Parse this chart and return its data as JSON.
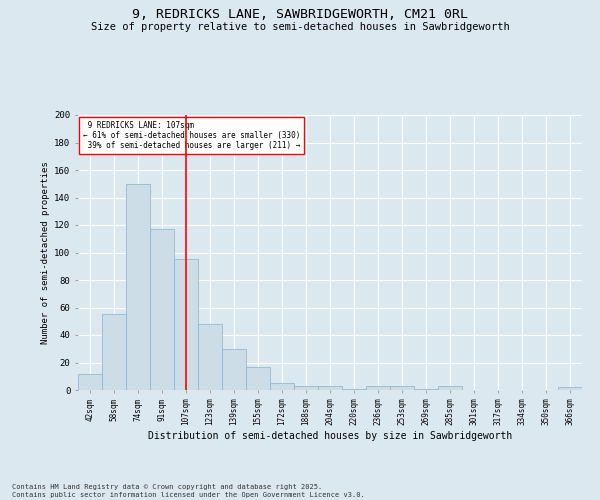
{
  "title": "9, REDRICKS LANE, SAWBRIDGEWORTH, CM21 0RL",
  "subtitle": "Size of property relative to semi-detached houses in Sawbridgeworth",
  "xlabel": "Distribution of semi-detached houses by size in Sawbridgeworth",
  "ylabel": "Number of semi-detached properties",
  "categories": [
    "42sqm",
    "58sqm",
    "74sqm",
    "91sqm",
    "107sqm",
    "123sqm",
    "139sqm",
    "155sqm",
    "172sqm",
    "188sqm",
    "204sqm",
    "220sqm",
    "236sqm",
    "253sqm",
    "269sqm",
    "285sqm",
    "301sqm",
    "317sqm",
    "334sqm",
    "350sqm",
    "366sqm"
  ],
  "values": [
    12,
    55,
    150,
    117,
    95,
    48,
    30,
    17,
    5,
    3,
    3,
    1,
    3,
    3,
    1,
    3,
    0,
    0,
    0,
    0,
    2
  ],
  "bar_color": "#ccdde8",
  "bar_edge_color": "#8ab0cc",
  "red_line_index": 4,
  "red_line_label": "9 REDRICKS LANE: 107sqm",
  "pct_smaller": 61,
  "count_smaller": 330,
  "pct_larger": 39,
  "count_larger": 211,
  "ylim": [
    0,
    200
  ],
  "yticks": [
    0,
    20,
    40,
    60,
    80,
    100,
    120,
    140,
    160,
    180,
    200
  ],
  "bg_color": "#dce8f0",
  "plot_bg_color": "#dce8f0",
  "title_fontsize": 9.5,
  "subtitle_fontsize": 7.5,
  "footer_text": "Contains HM Land Registry data © Crown copyright and database right 2025.\nContains public sector information licensed under the Open Government Licence v3.0."
}
